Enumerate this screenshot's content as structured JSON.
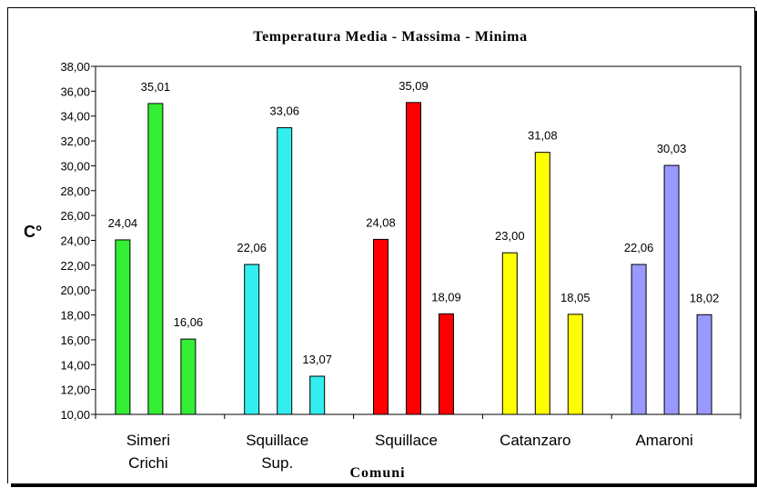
{
  "chart_data": {
    "type": "bar",
    "title": "Temperatura Media - Massima - Minima",
    "xlabel": "Comuni",
    "ylabel": "C°",
    "ylim": [
      10,
      38
    ],
    "yticks": [
      "10,00",
      "12,00",
      "14,00",
      "16,00",
      "18,00",
      "20,00",
      "22,00",
      "24,00",
      "26,00",
      "28,00",
      "30,00",
      "32,00",
      "34,00",
      "36,00",
      "38,00"
    ],
    "grid": false,
    "legend": "none",
    "categories": [
      {
        "name": [
          "Simeri",
          "Crichi"
        ],
        "color": "#33ee33",
        "values": [
          24.04,
          35.01,
          16.06
        ],
        "labels": [
          "24,04",
          "35,01",
          "16,06"
        ]
      },
      {
        "name": [
          "Squillace",
          "Sup."
        ],
        "color": "#33eeee",
        "values": [
          22.06,
          33.06,
          13.07
        ],
        "labels": [
          "22,06",
          "33,06",
          "13,07"
        ]
      },
      {
        "name": [
          "Squillace"
        ],
        "color": "#ff0000",
        "values": [
          24.08,
          35.09,
          18.09
        ],
        "labels": [
          "24,08",
          "35,09",
          "18,09"
        ]
      },
      {
        "name": [
          "Catanzaro"
        ],
        "color": "#ffff00",
        "values": [
          23.0,
          31.08,
          18.05
        ],
        "labels": [
          "23,00",
          "31,08",
          "18,05"
        ]
      },
      {
        "name": [
          "Amaroni"
        ],
        "color": "#9999ff",
        "values": [
          22.06,
          30.03,
          18.02
        ],
        "labels": [
          "22,06",
          "30,03",
          "18,02"
        ]
      }
    ]
  }
}
